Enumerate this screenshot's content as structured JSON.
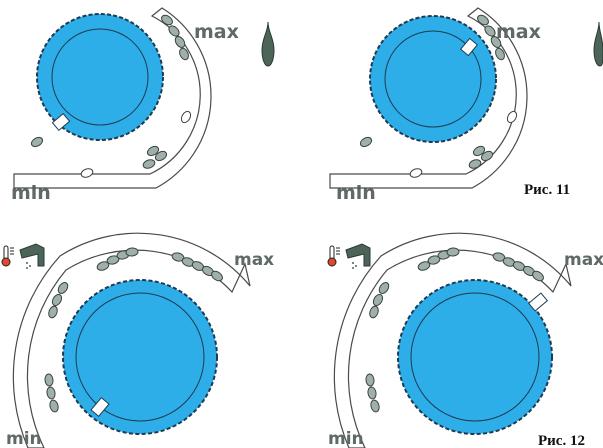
{
  "colors": {
    "knob": "#2eaee8",
    "knob_stroke": "#1d3a50",
    "arc_stroke": "#4a4a4a",
    "dot_fill": "#9fb0a8",
    "dot_stroke": "#3a443f",
    "text_gray": "#5f6a64"
  },
  "icons": {
    "flame": "flame-icon",
    "thermometer": "thermometer-icon",
    "tap": "tap-icon"
  },
  "panels": [
    {
      "id": "top-left",
      "max_label": "max",
      "min_label": "min",
      "knob_setting": "min",
      "caption": ""
    },
    {
      "id": "top-right",
      "max_label": "max",
      "min_label": "min",
      "knob_setting": "max",
      "caption": "Рис. 11"
    },
    {
      "id": "bottom-left",
      "max_label": "max",
      "min_label": "min",
      "knob_setting": "min",
      "caption": ""
    },
    {
      "id": "bottom-right",
      "max_label": "max",
      "min_label": "min",
      "knob_setting": "max",
      "caption": "Рис. 12"
    }
  ]
}
